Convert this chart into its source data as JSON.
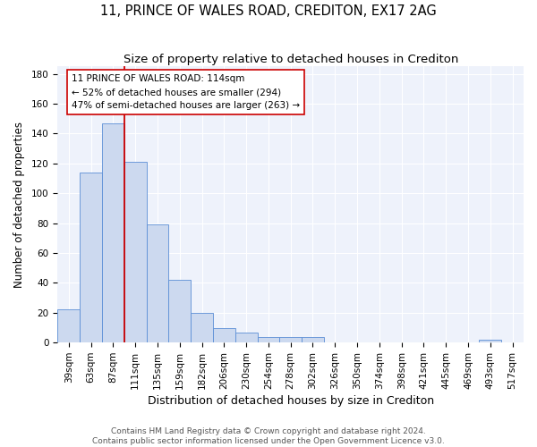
{
  "title": "11, PRINCE OF WALES ROAD, CREDITON, EX17 2AG",
  "subtitle": "Size of property relative to detached houses in Crediton",
  "xlabel": "Distribution of detached houses by size in Crediton",
  "ylabel": "Number of detached properties",
  "categories": [
    "39sqm",
    "63sqm",
    "87sqm",
    "111sqm",
    "135sqm",
    "159sqm",
    "182sqm",
    "206sqm",
    "230sqm",
    "254sqm",
    "278sqm",
    "302sqm",
    "326sqm",
    "350sqm",
    "374sqm",
    "398sqm",
    "421sqm",
    "445sqm",
    "469sqm",
    "493sqm",
    "517sqm"
  ],
  "values": [
    22,
    114,
    147,
    121,
    79,
    42,
    20,
    10,
    7,
    4,
    4,
    4,
    0,
    0,
    0,
    0,
    0,
    0,
    0,
    2,
    0
  ],
  "bar_color": "#ccd9ef",
  "bar_edge_color": "#5b8ed6",
  "vline_index": 2.5,
  "annotation_line1": "11 PRINCE OF WALES ROAD: 114sqm",
  "annotation_line2": "← 52% of detached houses are smaller (294)",
  "annotation_line3": "47% of semi-detached houses are larger (263) →",
  "annotation_box_color": "#ffffff",
  "annotation_box_edge": "#cc0000",
  "vline_color": "#cc0000",
  "ylim": [
    0,
    185
  ],
  "yticks": [
    0,
    20,
    40,
    60,
    80,
    100,
    120,
    140,
    160,
    180
  ],
  "footer1": "Contains HM Land Registry data © Crown copyright and database right 2024.",
  "footer2": "Contains public sector information licensed under the Open Government Licence v3.0.",
  "bg_color": "#eef2fb",
  "title_fontsize": 10.5,
  "subtitle_fontsize": 9.5,
  "xlabel_fontsize": 9,
  "ylabel_fontsize": 8.5,
  "tick_fontsize": 7.5,
  "annot_fontsize": 7.5,
  "footer_fontsize": 6.5
}
